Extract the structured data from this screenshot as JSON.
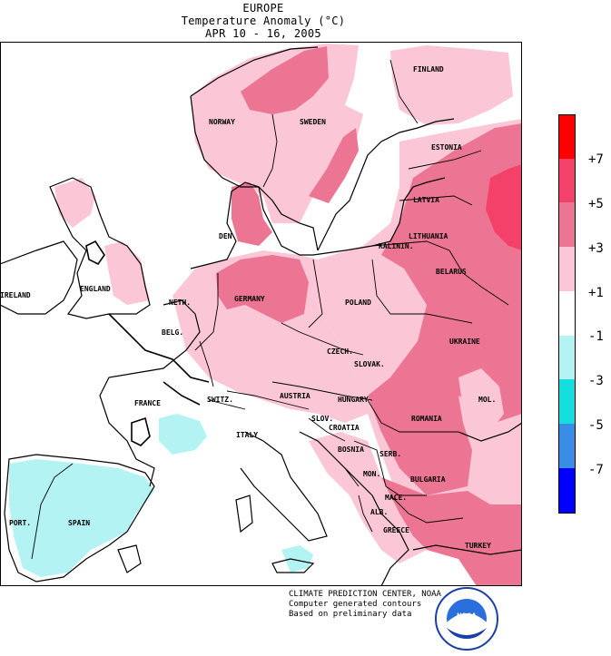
{
  "title": {
    "region": "EUROPE",
    "variable": "Temperature Anomaly (°C)",
    "period": "APR 10 - 16, 2005"
  },
  "credits": {
    "line1": "CLIMATE PREDICTION CENTER, NOAA",
    "line2": "Computer generated contours",
    "line3": "Based on preliminary data"
  },
  "logo_text": "NOAA",
  "legend": {
    "ticks": [
      "+7",
      "+5",
      "+3",
      "+1",
      "-1",
      "-3",
      "-5",
      "-7"
    ],
    "bins": [
      {
        "range": ">7",
        "color": "#ff0000"
      },
      {
        "range": "5 to 7",
        "color": "#f3416a"
      },
      {
        "range": "3 to 5",
        "color": "#ec7593"
      },
      {
        "range": "1 to 3",
        "color": "#fbc6d6"
      },
      {
        "range": "-1 to 1",
        "color": "#ffffff"
      },
      {
        "range": "-3 to -1",
        "color": "#b4f3f3"
      },
      {
        "range": "-5 to -3",
        "color": "#14dede"
      },
      {
        "range": "-7 to -5",
        "color": "#3a8de6"
      },
      {
        "range": "<-7",
        "color": "#0000ff"
      }
    ]
  },
  "countries": [
    {
      "name": "FINLAND"
    },
    {
      "name": "NORWAY"
    },
    {
      "name": "SWEDEN"
    },
    {
      "name": "ESTONIA"
    },
    {
      "name": "LATVIA"
    },
    {
      "name": "DEN"
    },
    {
      "name": "LITHUANIA"
    },
    {
      "name": "KALININ."
    },
    {
      "name": "BELARUS"
    },
    {
      "name": "ENGLAND"
    },
    {
      "name": "IRELAND"
    },
    {
      "name": "GERMANY"
    },
    {
      "name": "POLAND"
    },
    {
      "name": "NETH."
    },
    {
      "name": "BELG."
    },
    {
      "name": "CZECH."
    },
    {
      "name": "UKRAINE"
    },
    {
      "name": "SLOVAK."
    },
    {
      "name": "MOL."
    },
    {
      "name": "FRANCE"
    },
    {
      "name": "SWITZ."
    },
    {
      "name": "AUSTRIA"
    },
    {
      "name": "HUNGARY"
    },
    {
      "name": "SLOV."
    },
    {
      "name": "ROMANIA"
    },
    {
      "name": "CROATIA"
    },
    {
      "name": "ITALY"
    },
    {
      "name": "BOSNIA"
    },
    {
      "name": "SERB."
    },
    {
      "name": "MON."
    },
    {
      "name": "BULGARIA"
    },
    {
      "name": "MACE."
    },
    {
      "name": "ALB."
    },
    {
      "name": "GREECE"
    },
    {
      "name": "PORT."
    },
    {
      "name": "SPAIN"
    },
    {
      "name": "TURKEY"
    }
  ]
}
